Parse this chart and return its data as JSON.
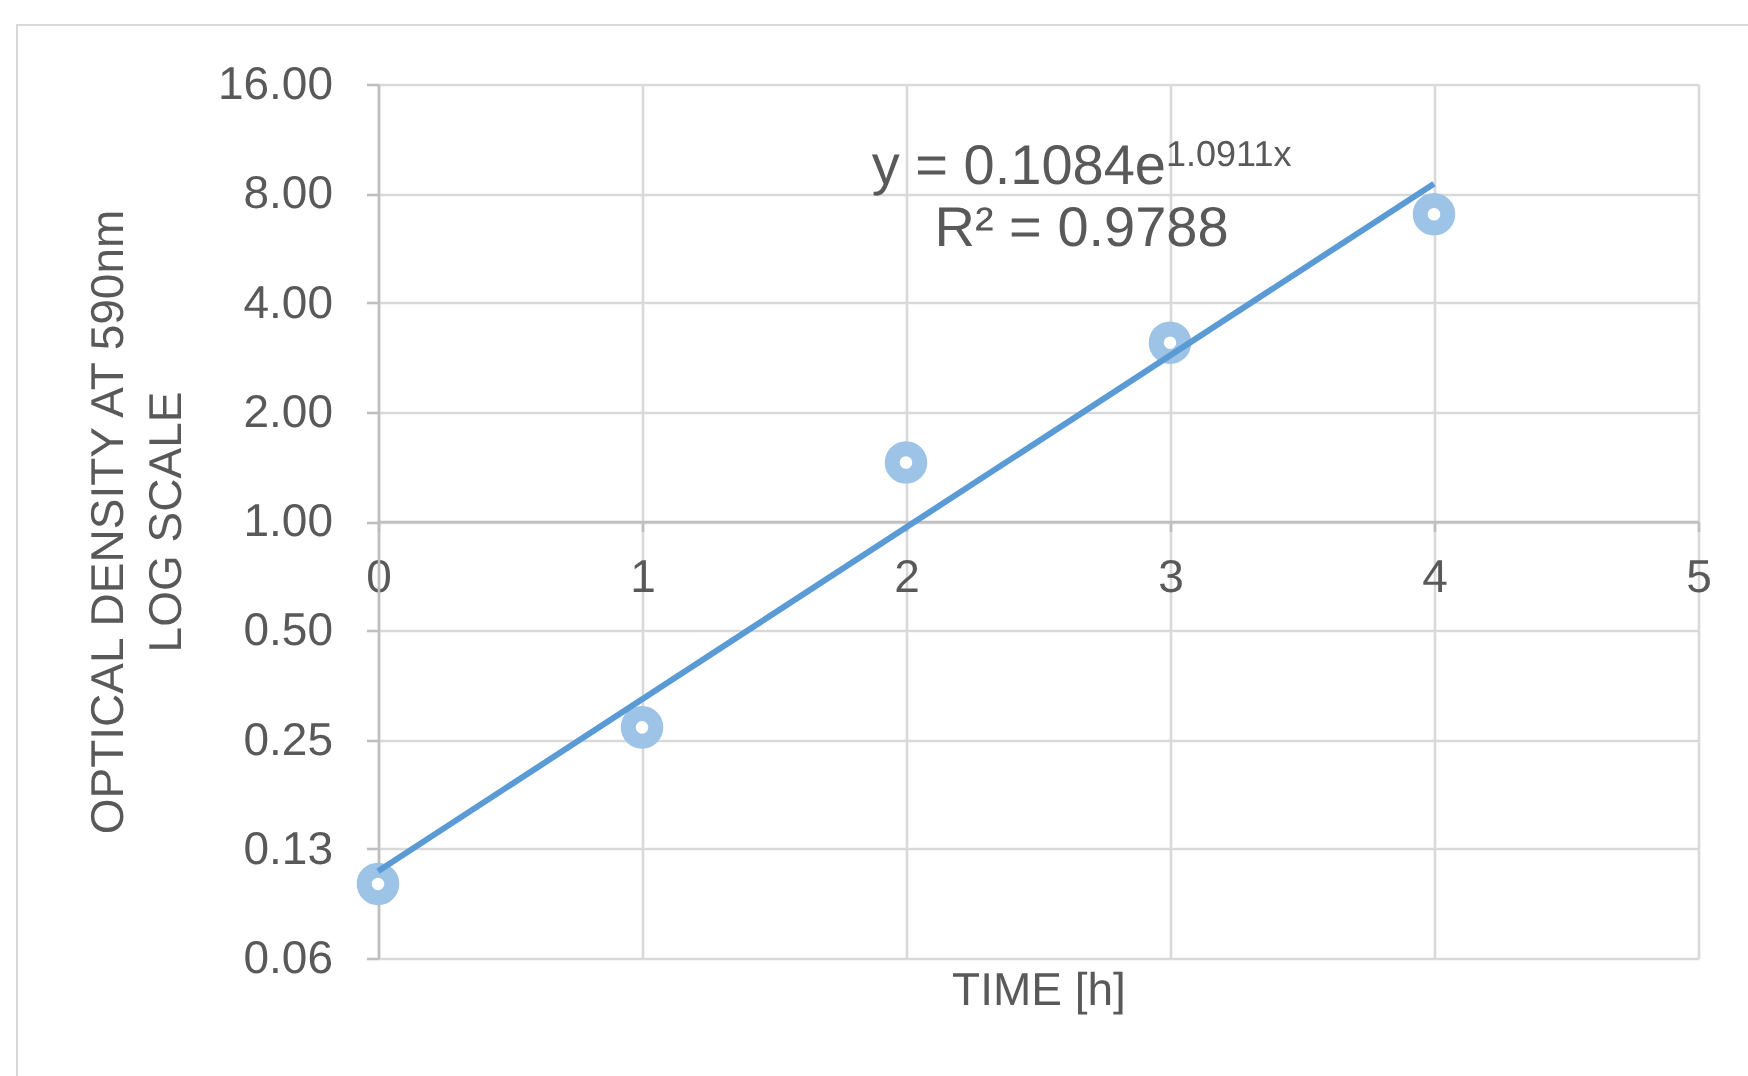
{
  "chart_data": {
    "type": "scatter",
    "xlabel": "TIME [h]",
    "ylabel": "OPTICAL DENSITY AT 590nm\nLOG SCALE",
    "annotations": [
      "y = 0.1084e$^{1.0911x}$",
      "R² = 0.9788"
    ],
    "xlim": [
      0,
      5
    ],
    "xticks": [
      0,
      1,
      2,
      3,
      4,
      5
    ],
    "ylim": [
      0.0625,
      16
    ],
    "yticks": [
      {
        "value": 0.0625,
        "label": "0.06"
      },
      {
        "value": 0.125,
        "label": "0.13"
      },
      {
        "value": 0.25,
        "label": "0.25"
      },
      {
        "value": 0.5,
        "label": "0.50"
      },
      {
        "value": 1,
        "label": "1.00"
      },
      {
        "value": 2,
        "label": "2.00"
      },
      {
        "value": 4,
        "label": "4.00"
      },
      {
        "value": 8,
        "label": "8.00"
      },
      {
        "value": 16,
        "label": "16.00"
      }
    ],
    "log": "y",
    "grid": true,
    "series": [
      {
        "marker": "circle",
        "color": "#9dc3e6",
        "x": [
          0,
          1,
          2,
          3,
          4
        ],
        "values": [
          0.1,
          0.27,
          1.45,
          3.1,
          7.0
        ]
      },
      {
        "type": "line",
        "color": "#5b9bd5",
        "x": [
          0,
          4
        ],
        "values": [
          0.1084,
          8.5
        ]
      }
    ]
  }
}
